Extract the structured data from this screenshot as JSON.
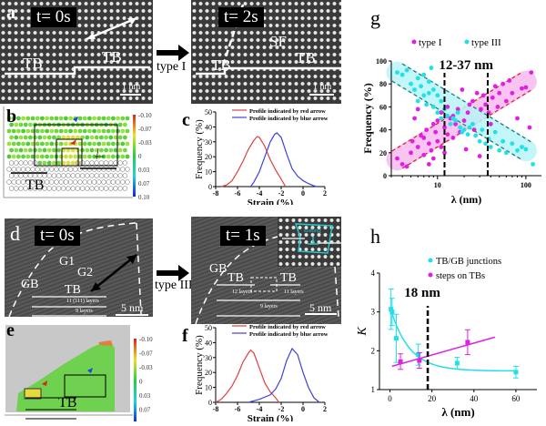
{
  "panels": {
    "a": {
      "letter": "a",
      "left_time": "t= 0s",
      "right_time": "t= 2s",
      "tb_label": "TB",
      "sf_label": "SF",
      "scale": "1 nm",
      "transition": "type I"
    },
    "b": {
      "letter": "b",
      "tb_label": "TB",
      "colorbar_ticks": [
        "-0.10",
        "-0.07",
        "-0.03",
        "0",
        "0.03",
        "0.07",
        "0.10"
      ]
    },
    "d": {
      "letter": "d",
      "left_time": "t= 0s",
      "right_time": "t= 1s",
      "gb_label": "GB",
      "g1_label": "G1",
      "g2_label": "G2",
      "tb_label": "TB",
      "layers_11_111": "11 (111) layers",
      "layers_9": "9 layers",
      "layers_12": "12 layers",
      "layers_11": "11 layers",
      "scale": "5 nm",
      "transition": "type III",
      "inset_label": "Burgers"
    },
    "e": {
      "letter": "e",
      "tb_label": "TB",
      "colorbar_ticks": [
        "-0.10",
        "-0.07",
        "-0.03",
        "0",
        "0.03",
        "0.07",
        "0.10"
      ]
    }
  },
  "colors": {
    "red_profile": "#e04040",
    "blue_profile": "#4040e0",
    "type1": "#e020e0",
    "type3": "#20e0e8",
    "band1": "#f8b8f0",
    "band3": "#b8f4f8"
  },
  "chart_data": [
    {
      "id": "c",
      "type": "line",
      "letter": "c",
      "xlabel": "Strain (%)",
      "ylabel": "Frequency (%)",
      "xlim": [
        -8,
        2
      ],
      "ylim": [
        0,
        50
      ],
      "xticks": [
        "-8",
        "-6",
        "-4",
        "-2",
        "0",
        "2"
      ],
      "yticks": [
        "0",
        "10",
        "20",
        "30",
        "40",
        "50"
      ],
      "legend": "top-right",
      "series": [
        {
          "name": "Profile indicated by red arrow",
          "x": [
            -7.5,
            -7,
            -6.5,
            -6,
            -5.5,
            -5,
            -4.5,
            -4.2,
            -4,
            -3.5,
            -3,
            -2.5,
            -2,
            -1.6
          ],
          "y": [
            0,
            1,
            4,
            10,
            17,
            25,
            31,
            33.5,
            33,
            27,
            18,
            11,
            5,
            0
          ]
        },
        {
          "name": "Profile indicated by blue arrow",
          "x": [
            -4.8,
            -4.5,
            -4,
            -3.5,
            -3,
            -2.6,
            -2.4,
            -2,
            -1.5,
            -1,
            -0.5,
            0,
            0.5,
            1,
            1.3
          ],
          "y": [
            0,
            3,
            10,
            20,
            30,
            35,
            36,
            33,
            22,
            12,
            7,
            4,
            2,
            0.5,
            0
          ]
        }
      ]
    },
    {
      "id": "f",
      "type": "line",
      "letter": "f",
      "xlabel": "Strain (%)",
      "ylabel": "Frequency (%)",
      "xlim": [
        -8,
        2
      ],
      "ylim": [
        0,
        50
      ],
      "xticks": [
        "-8",
        "-6",
        "-4",
        "-2",
        "0",
        "2"
      ],
      "yticks": [
        "0",
        "10",
        "20",
        "30",
        "40",
        "50"
      ],
      "legend": "top-right",
      "series": [
        {
          "name": "Profile indicated by red arrow",
          "x": [
            -8,
            -7.5,
            -7,
            -6.5,
            -6,
            -5.5,
            -5,
            -4.8,
            -4.5,
            -4,
            -3.5,
            -3,
            -2.5,
            -2.2
          ],
          "y": [
            0,
            2,
            6,
            11,
            18,
            27,
            33,
            35,
            33,
            23,
            13,
            7,
            3,
            0
          ]
        },
        {
          "name": "Profile indicated by blue arrow",
          "x": [
            -5,
            -4,
            -3,
            -2.5,
            -2,
            -1.5,
            -1,
            -0.5,
            0,
            0.5,
            1,
            1.5
          ],
          "y": [
            0,
            2,
            5,
            9,
            16,
            28,
            36,
            32,
            20,
            10,
            3,
            0
          ]
        }
      ]
    },
    {
      "id": "g",
      "type": "scatter",
      "letter": "g",
      "xlabel": "λ (nm)",
      "ylabel": "Frequency (%)",
      "xscale": "log",
      "xlim": [
        3,
        150
      ],
      "ylim": [
        0,
        100
      ],
      "xticks": [
        "10",
        "100"
      ],
      "yticks": [
        "0",
        "20",
        "40",
        "60",
        "80",
        "100"
      ],
      "annotation": "12-37 nm",
      "vlines": [
        12,
        37
      ],
      "legend": "top",
      "series": [
        {
          "name": "type I",
          "x": [
            3.5,
            4,
            4.5,
            5,
            5.2,
            5.5,
            6,
            6,
            6.5,
            7,
            7,
            7.5,
            8,
            8,
            8.5,
            9,
            9,
            9.5,
            10,
            10,
            11,
            11,
            12,
            12,
            13,
            13,
            14,
            15,
            15,
            16,
            17,
            18,
            19,
            20,
            21,
            22,
            23,
            25,
            26,
            28,
            30,
            31,
            33,
            35,
            38,
            40,
            42,
            45,
            48,
            50,
            55,
            60,
            65,
            70,
            80,
            90,
            100,
            110,
            115
          ],
          "y": [
            15,
            10,
            8,
            20,
            30,
            50,
            25,
            58,
            35,
            18,
            33,
            40,
            10,
            28,
            22,
            45,
            15,
            38,
            30,
            48,
            25,
            55,
            20,
            42,
            36,
            60,
            50,
            33,
            52,
            45,
            58,
            38,
            75,
            48,
            23,
            55,
            62,
            65,
            40,
            72,
            17,
            58,
            70,
            62,
            55,
            45,
            68,
            78,
            60,
            72,
            80,
            65,
            83,
            72,
            50,
            76,
            77,
            42,
            90
          ]
        },
        {
          "name": "type III",
          "x": [
            3.5,
            4,
            4.5,
            5,
            5.5,
            6,
            6,
            6.5,
            7,
            7,
            7.5,
            8,
            8,
            8.5,
            9,
            9,
            10,
            10,
            11,
            11,
            12,
            13,
            14,
            15,
            16,
            17,
            18,
            19,
            20,
            22,
            23,
            25,
            27,
            30,
            32,
            35,
            38,
            40,
            45,
            50,
            55,
            60,
            70,
            80,
            90,
            100,
            120
          ],
          "y": [
            90,
            88,
            92,
            80,
            75,
            85,
            65,
            78,
            88,
            70,
            62,
            82,
            72,
            94,
            60,
            75,
            55,
            70,
            50,
            65,
            58,
            52,
            45,
            50,
            48,
            55,
            42,
            38,
            40,
            36,
            42,
            45,
            35,
            30,
            40,
            28,
            32,
            25,
            38,
            22,
            30,
            20,
            28,
            22,
            25,
            23,
            10
          ]
        }
      ],
      "bands": [
        {
          "series": "type I",
          "from": [
            3.5,
            14
          ],
          "to": [
            100,
            82
          ]
        },
        {
          "series": "type III",
          "from": [
            3.5,
            90
          ],
          "to": [
            100,
            22
          ]
        }
      ]
    },
    {
      "id": "h",
      "type": "line",
      "letter": "h",
      "xlabel": "λ (nm)",
      "ylabel": "K",
      "xlim": [
        -5,
        70
      ],
      "ylim": [
        1,
        4
      ],
      "xticks": [
        "0",
        "20",
        "40",
        "60"
      ],
      "yticks": [
        "1",
        "2",
        "3",
        "4"
      ],
      "annotation": "18 nm",
      "vline": 18,
      "legend": "top-right",
      "series": [
        {
          "name": "TB/GB junctions",
          "x": [
            0.5,
            1,
            3,
            13.5,
            32,
            60
          ],
          "y": [
            3.07,
            3.0,
            2.32,
            1.9,
            1.68,
            1.45
          ],
          "err": [
            0.52,
            0.35,
            0.62,
            0.27,
            0.15,
            0.15
          ],
          "fit": "exp-decay"
        },
        {
          "name": "steps on TBs",
          "x": [
            5,
            14,
            37
          ],
          "y": [
            1.72,
            1.75,
            2.22
          ],
          "err": [
            0.2,
            0.2,
            0.32
          ],
          "fit": "linear"
        }
      ]
    }
  ]
}
